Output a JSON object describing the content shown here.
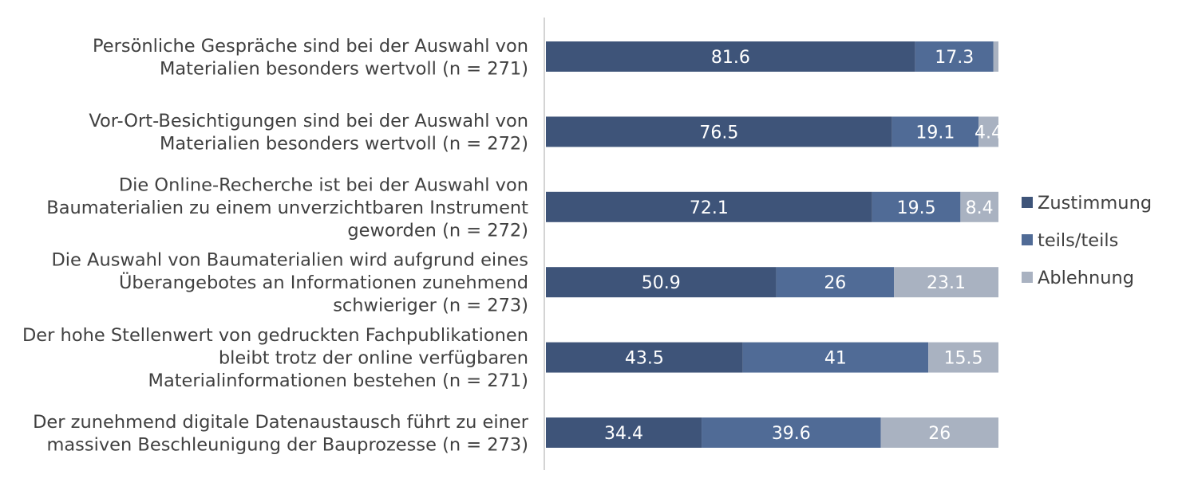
{
  "chart_data": {
    "type": "bar",
    "orientation": "horizontal",
    "stacked": true,
    "normalized_to": 100,
    "categories": [
      [
        "Persönliche Gespräche sind bei der Auswahl von",
        "Materialien besonders wertvoll (n = 271)"
      ],
      [
        "Vor-Ort-Besichtigungen sind bei der Auswahl von",
        "Materialien besonders wertvoll (n = 272)"
      ],
      [
        "Die Online-Recherche ist bei der Auswahl von",
        "Baumaterialien zu einem unverzichtbaren Instrument",
        "geworden (n = 272)"
      ],
      [
        "Die Auswahl von Baumaterialien wird aufgrund eines",
        "Überangebotes an Informationen zunehmend",
        "schwieriger (n = 273)"
      ],
      [
        "Der hohe Stellenwert von gedruckten Fachpublikationen",
        "bleibt trotz der online verfügbaren",
        "Materialinformationen bestehen  (n = 271)"
      ],
      [
        "Der zunehmend digitale Datenaustausch führt zu einer",
        "massiven Beschleunigung der Bauprozesse (n = 273)"
      ]
    ],
    "series": [
      {
        "name": "Zustimmung",
        "color": "#3e5479",
        "values": [
          81.6,
          76.5,
          72.1,
          50.9,
          43.5,
          34.4
        ]
      },
      {
        "name": "teils/teils",
        "color": "#506b96",
        "values": [
          17.3,
          19.1,
          19.5,
          26,
          41,
          39.6
        ]
      },
      {
        "name": "Ablehnung",
        "color": "#a9b2c1",
        "values": [
          1.1,
          4.4,
          8.4,
          23.1,
          15.5,
          26
        ]
      }
    ],
    "data_labels": [
      [
        "81.6",
        "17.3",
        ""
      ],
      [
        "76.5",
        "19.1",
        "4.4"
      ],
      [
        "72.1",
        "19.5",
        "8.4"
      ],
      [
        "50.9",
        "26",
        "23.1"
      ],
      [
        "43.5",
        "41",
        "15.5"
      ],
      [
        "34.4",
        "39.6",
        "26"
      ]
    ],
    "legend_position": "right",
    "grid": false,
    "xlim": [
      0,
      100
    ]
  }
}
